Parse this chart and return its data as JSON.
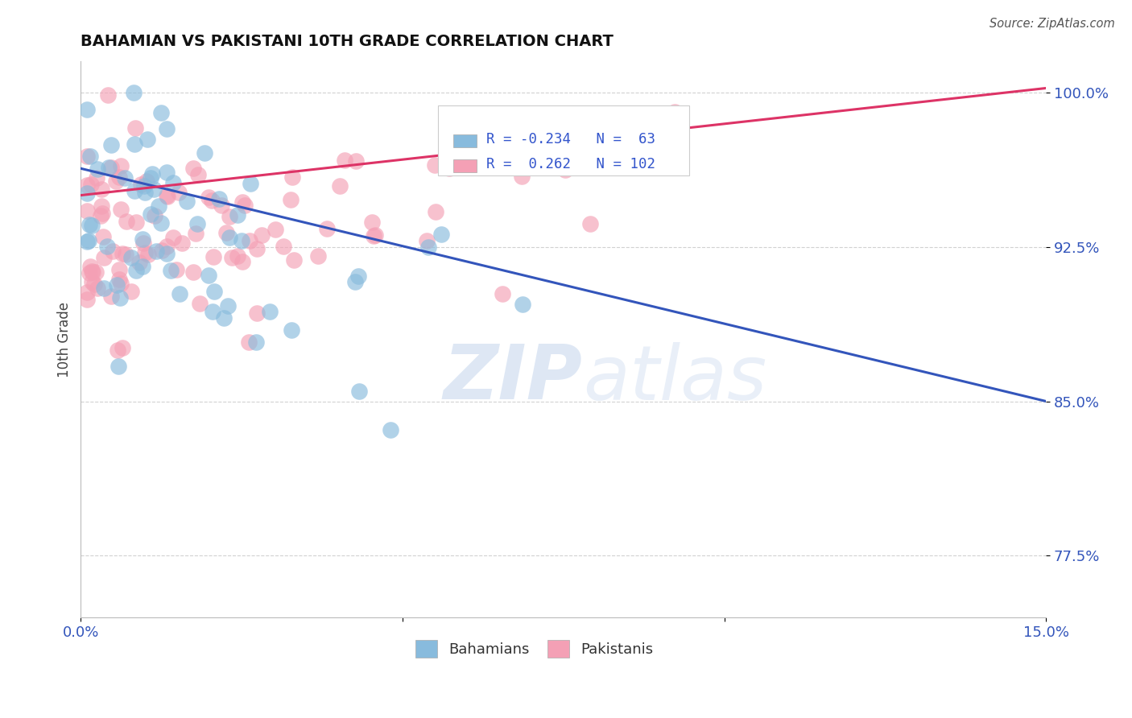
{
  "title": "BAHAMIAN VS PAKISTANI 10TH GRADE CORRELATION CHART",
  "source_text": "Source: ZipAtlas.com",
  "ylabel": "10th Grade",
  "xlim": [
    0.0,
    0.15
  ],
  "ylim": [
    0.745,
    1.015
  ],
  "xticks": [
    0.0,
    0.05,
    0.1,
    0.15
  ],
  "xticklabels": [
    "0.0%",
    "",
    "",
    "15.0%"
  ],
  "yticks": [
    0.775,
    0.85,
    0.925,
    1.0
  ],
  "yticklabels": [
    "77.5%",
    "85.0%",
    "92.5%",
    "100.0%"
  ],
  "blue_color": "#88bbdd",
  "pink_color": "#f4a0b5",
  "blue_line_color": "#3355bb",
  "pink_line_color": "#dd3366",
  "R_blue": -0.234,
  "N_blue": 63,
  "R_pink": 0.262,
  "N_pink": 102,
  "watermark_zip": "ZIP",
  "watermark_atlas": "atlas",
  "legend_label_blue": "Bahamians",
  "legend_label_pink": "Pakistanis",
  "blue_line_x0": 0.0,
  "blue_line_y0": 0.963,
  "blue_line_x1": 0.15,
  "blue_line_y1": 0.85,
  "pink_line_x0": 0.0,
  "pink_line_y0": 0.95,
  "pink_line_x1": 0.15,
  "pink_line_y1": 1.002
}
